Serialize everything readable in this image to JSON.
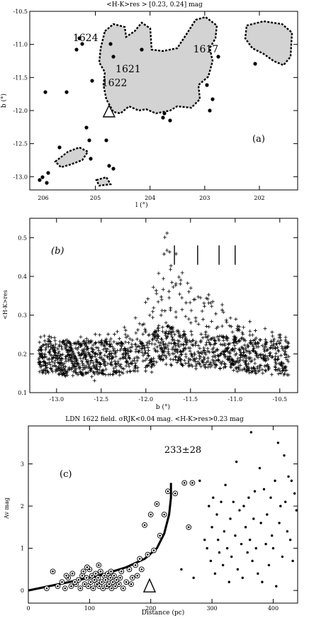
{
  "chart_data": [
    {
      "type": "map",
      "title": "<H-K>res > [0.23, 0.24] mag",
      "panel_label": "(a)",
      "xlabel": "l (°)",
      "ylabel": "b (°)",
      "xlim": [
        206.2,
        201.3
      ],
      "ylim": [
        -13.2,
        -10.5
      ],
      "xticks": [
        205,
        204,
        203,
        202
      ],
      "xtick_labels": [
        "205",
        "204",
        "203",
        "202"
      ],
      "yticks": [
        -10.5,
        -11.0,
        -11.5,
        -12.0,
        -12.5,
        -13.0
      ],
      "ytick_labels": [
        "-10.5",
        "-11.0",
        "-11.5",
        "-12.0",
        "-12.5",
        "-13.0"
      ],
      "first_xtick_label": "206",
      "cloud_labels": [
        {
          "text": "1624",
          "l": 205.18,
          "b": -10.95
        },
        {
          "text": "1617",
          "l": 202.98,
          "b": -11.12
        },
        {
          "text": "1621",
          "l": 204.4,
          "b": -11.42
        },
        {
          "text": "1622",
          "l": 204.65,
          "b": -11.63
        }
      ],
      "marker_triangle": {
        "l": 204.75,
        "b": -12.02
      },
      "colors": {
        "fill": "#d3d3d3",
        "edge": "#000000"
      }
    },
    {
      "type": "scatter",
      "panel_label": "(b)",
      "xlabel": "b (°)",
      "ylabel": "<H-K>res",
      "xlim": [
        -13.3,
        -10.3
      ],
      "ylim": [
        0.1,
        0.55
      ],
      "xticks": [
        -13.0,
        -12.5,
        -12.0,
        -11.5,
        -11.0,
        -10.5
      ],
      "xtick_labels": [
        "-13.0",
        "-12.5",
        "-12.0",
        "-11.5",
        "-11.0",
        "-10.5"
      ],
      "yticks": [
        0.1,
        0.2,
        0.3,
        0.4,
        0.5
      ],
      "ytick_labels": [
        "0.1",
        "0.2",
        "0.3",
        "0.4",
        "0.5"
      ],
      "vertical_markers_b": [
        -11.68,
        -11.42,
        -11.18,
        -11.0
      ],
      "marker_symbol": "+",
      "envelope": {
        "b": [
          -13.2,
          -12.9,
          -12.6,
          -12.3,
          -12.1,
          -11.95,
          -11.85,
          -11.75,
          -11.6,
          -11.45,
          -11.3,
          -11.15,
          -11.0,
          -10.8,
          -10.6,
          -10.4
        ],
        "upper": [
          0.25,
          0.24,
          0.25,
          0.26,
          0.3,
          0.36,
          0.48,
          0.53,
          0.42,
          0.36,
          0.37,
          0.34,
          0.31,
          0.28,
          0.26,
          0.24
        ],
        "lower": [
          0.15,
          0.14,
          0.13,
          0.14,
          0.15,
          0.15,
          0.16,
          0.17,
          0.17,
          0.17,
          0.17,
          0.16,
          0.16,
          0.15,
          0.15,
          0.15
        ]
      }
    },
    {
      "type": "scatter",
      "title": "LDN 1622 field. σRJK<0.04 mag. <H-K>res>0.23 mag",
      "panel_label": "(c)",
      "annotation": "233±28",
      "xlabel": "Distance (pc)",
      "ylabel": "Av mag",
      "xlim": [
        0,
        440
      ],
      "ylim": [
        -0.3,
        3.9
      ],
      "xticks": [
        0,
        100,
        200,
        300,
        400
      ],
      "xtick_labels": [
        "0",
        "100",
        "200",
        "300",
        "400"
      ],
      "yticks": [
        0,
        1,
        2,
        3
      ],
      "ytick_labels": [
        "0",
        "1",
        "2",
        "3"
      ],
      "marker_triangle": {
        "x": 198,
        "y": 0.1
      },
      "fit_curve": {
        "x": [
          0,
          40,
          80,
          120,
          160,
          190,
          210,
          222,
          230,
          233,
          233
        ],
        "y": [
          0.0,
          0.12,
          0.24,
          0.37,
          0.55,
          0.75,
          1.0,
          1.35,
          1.8,
          2.2,
          2.55
        ]
      },
      "series": [
        {
          "name": "",
          "symbol": "circled-dot",
          "points": [
            [
              40,
              0.45
            ],
            [
              55,
              0.2
            ],
            [
              60,
              0.05
            ],
            [
              65,
              0.3
            ],
            [
              70,
              0.1
            ],
            [
              72,
              0.4
            ],
            [
              78,
              0.15
            ],
            [
              82,
              0.25
            ],
            [
              85,
              0.05
            ],
            [
              88,
              0.35
            ],
            [
              90,
              0.45
            ],
            [
              92,
              0.15
            ],
            [
              95,
              0.3
            ],
            [
              98,
              0.1
            ],
            [
              100,
              0.5
            ],
            [
              102,
              0.2
            ],
            [
              104,
              0.35
            ],
            [
              106,
              0.05
            ],
            [
              108,
              0.25
            ],
            [
              110,
              0.4
            ],
            [
              112,
              0.15
            ],
            [
              114,
              0.3
            ],
            [
              116,
              0.1
            ],
            [
              118,
              0.45
            ],
            [
              120,
              0.2
            ],
            [
              122,
              0.05
            ],
            [
              124,
              0.35
            ],
            [
              126,
              0.25
            ],
            [
              128,
              0.1
            ],
            [
              130,
              0.4
            ],
            [
              132,
              0.15
            ],
            [
              134,
              0.3
            ],
            [
              136,
              0.05
            ],
            [
              138,
              0.2
            ],
            [
              140,
              0.35
            ],
            [
              142,
              0.1
            ],
            [
              144,
              0.25
            ],
            [
              148,
              0.15
            ],
            [
              150,
              0.3
            ],
            [
              155,
              0.05
            ],
            [
              160,
              0.2
            ],
            [
              165,
              0.5
            ],
            [
              170,
              0.3
            ],
            [
              175,
              0.6
            ],
            [
              178,
              0.35
            ],
            [
              182,
              0.75
            ],
            [
              185,
              0.5
            ],
            [
              190,
              1.55
            ],
            [
              195,
              0.85
            ],
            [
              200,
              1.8
            ],
            [
              205,
              0.95
            ],
            [
              210,
              2.05
            ],
            [
              215,
              1.3
            ],
            [
              222,
              1.8
            ],
            [
              228,
              2.35
            ],
            [
              240,
              2.3
            ],
            [
              255,
              2.55
            ],
            [
              262,
              1.5
            ],
            [
              268,
              2.55
            ],
            [
              30,
              0.05
            ],
            [
              48,
              0.1
            ],
            [
              62,
              0.35
            ],
            [
              76,
              0.2
            ],
            [
              96,
              0.55
            ],
            [
              115,
              0.6
            ],
            [
              135,
              0.45
            ],
            [
              152,
              0.45
            ],
            [
              168,
              0.15
            ]
          ]
        },
        {
          "name": "",
          "symbol": "dot",
          "points": [
            [
              250,
              0.5
            ],
            [
              270,
              0.3
            ],
            [
              280,
              2.6
            ],
            [
              288,
              1.2
            ],
            [
              292,
              1.0
            ],
            [
              295,
              2.0
            ],
            [
              298,
              0.7
            ],
            [
              300,
              1.5
            ],
            [
              302,
              2.2
            ],
            [
              305,
              0.4
            ],
            [
              308,
              1.8
            ],
            [
              310,
              1.2
            ],
            [
              312,
              0.9
            ],
            [
              315,
              2.1
            ],
            [
              318,
              0.6
            ],
            [
              320,
              1.4
            ],
            [
              322,
              2.5
            ],
            [
              325,
              1.0
            ],
            [
              328,
              0.2
            ],
            [
              330,
              1.7
            ],
            [
              332,
              0.8
            ],
            [
              335,
              2.1
            ],
            [
              338,
              1.3
            ],
            [
              340,
              3.05
            ],
            [
              342,
              0.5
            ],
            [
              345,
              1.9
            ],
            [
              348,
              1.1
            ],
            [
              350,
              0.3
            ],
            [
              352,
              2.0
            ],
            [
              355,
              1.5
            ],
            [
              358,
              0.9
            ],
            [
              360,
              2.2
            ],
            [
              362,
              1.2
            ],
            [
              364,
              3.75
            ],
            [
              366,
              0.7
            ],
            [
              368,
              1.7
            ],
            [
              370,
              2.35
            ],
            [
              372,
              1.0
            ],
            [
              375,
              0.4
            ],
            [
              378,
              2.9
            ],
            [
              380,
              1.6
            ],
            [
              382,
              0.2
            ],
            [
              385,
              2.4
            ],
            [
              388,
              1.1
            ],
            [
              390,
              1.8
            ],
            [
              393,
              0.6
            ],
            [
              396,
              2.2
            ],
            [
              398,
              1.3
            ],
            [
              400,
              1.0
            ],
            [
              403,
              2.6
            ],
            [
              405,
              0.1
            ],
            [
              408,
              3.5
            ],
            [
              410,
              1.6
            ],
            [
              412,
              2.0
            ],
            [
              415,
              0.8
            ],
            [
              418,
              3.2
            ],
            [
              420,
              2.1
            ],
            [
              423,
              1.4
            ],
            [
              425,
              2.7
            ],
            [
              428,
              1.2
            ],
            [
              430,
              2.6
            ],
            [
              432,
              0.7
            ],
            [
              435,
              2.3
            ],
            [
              438,
              1.9
            ]
          ]
        }
      ]
    }
  ]
}
